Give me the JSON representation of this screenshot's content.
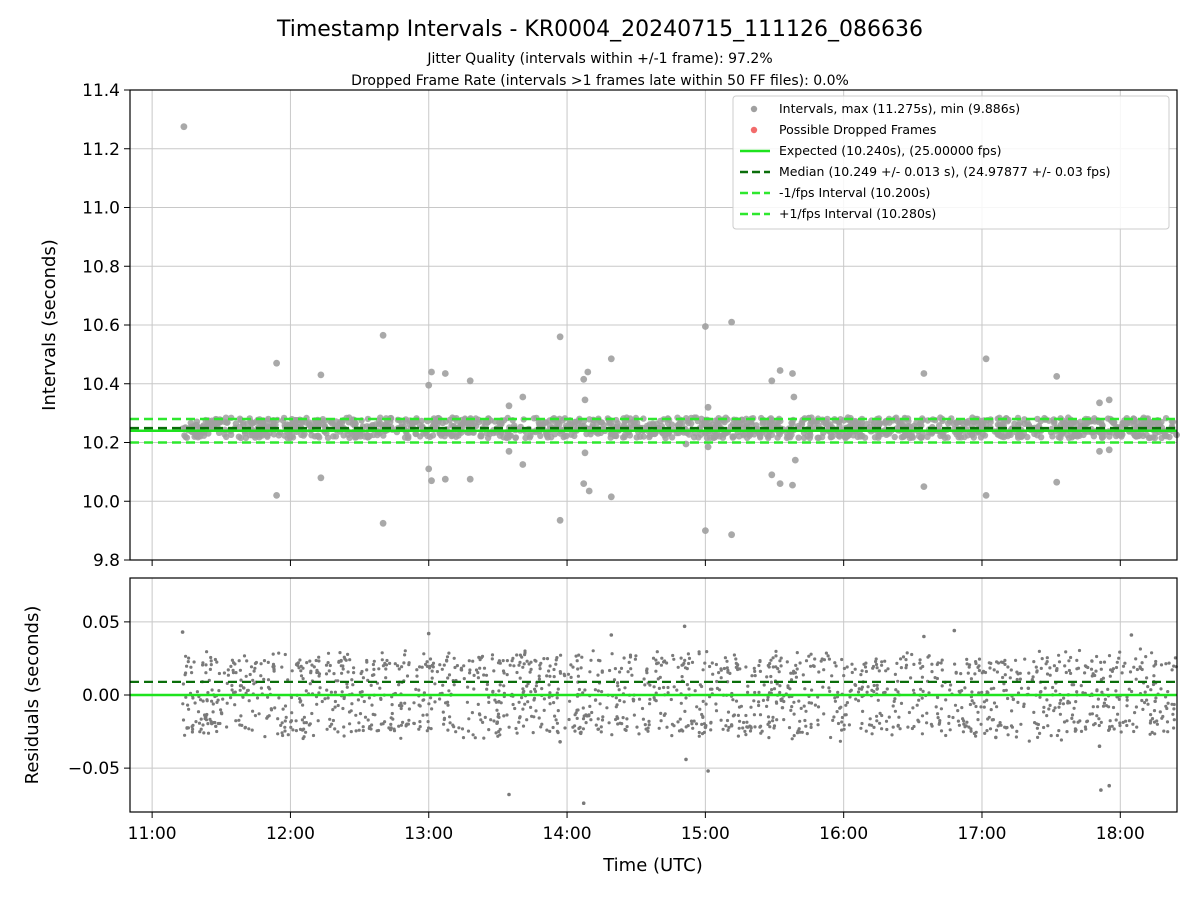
{
  "chart_data": {
    "title": "Timestamp Intervals - KR0004_20240715_111126_086636",
    "subtitle_lines": [
      "Jitter Quality (intervals within +/-1 frame): 97.2%",
      "Dropped Frame Rate (intervals >1 frames late within 50 FF files): 0.0%"
    ],
    "xlabel": "Time (UTC)",
    "x_ticks": [
      "11:00",
      "12:00",
      "13:00",
      "14:00",
      "15:00",
      "16:00",
      "17:00",
      "18:00"
    ],
    "x_range_hours": [
      10.84,
      18.41
    ],
    "data_start_hour": 11.22,
    "data_end_hour": 18.41,
    "colors": {
      "intervals": "#a0a0a0",
      "dropped": "#f26b6b",
      "expected": "#1ee31e",
      "median": "#0a6e0a",
      "fps_band": "#2ee82e",
      "residuals": "#7a7a7a",
      "grid": "#c8c8c8"
    },
    "panels": [
      {
        "type": "scatter",
        "ylabel": "Intervals (seconds)",
        "ylim": [
          9.8,
          11.4
        ],
        "y_ticks": [
          "9.8",
          "10.0",
          "10.2",
          "10.4",
          "10.6",
          "10.8",
          "11.0",
          "11.2",
          "11.4"
        ],
        "grid": true,
        "legend_position": "top-right",
        "legend": [
          {
            "label": "Intervals, max (11.275s), min (9.886s)",
            "marker": "dot",
            "color": "#a0a0a0"
          },
          {
            "label": "Possible Dropped Frames",
            "marker": "dot",
            "color": "#f26b6b"
          },
          {
            "label": "Expected (10.240s), (25.00000 fps)",
            "marker": "solid",
            "color": "#1ee31e"
          },
          {
            "label": "Median (10.249 +/- 0.013 s), (24.97877 +/- 0.03 fps)",
            "marker": "dashed",
            "color": "#0a6e0a"
          },
          {
            "label": "-1/fps Interval (10.200s)",
            "marker": "dashed",
            "color": "#2ee82e"
          },
          {
            "label": "+1/fps Interval (10.280s)",
            "marker": "dashed",
            "color": "#2ee82e"
          }
        ],
        "reference_lines": {
          "expected": 10.24,
          "median": 10.249,
          "minus_fps": 10.2,
          "plus_fps": 10.28
        },
        "dense_band": [
          10.215,
          10.285
        ],
        "outliers": [
          [
            11.23,
            11.275
          ],
          [
            11.9,
            10.47
          ],
          [
            11.9,
            10.02
          ],
          [
            12.22,
            10.43
          ],
          [
            12.22,
            10.08
          ],
          [
            12.67,
            10.565
          ],
          [
            12.67,
            9.925
          ],
          [
            13.0,
            10.395
          ],
          [
            13.02,
            10.44
          ],
          [
            13.0,
            10.11
          ],
          [
            13.02,
            10.07
          ],
          [
            13.12,
            10.435
          ],
          [
            13.12,
            10.075
          ],
          [
            13.3,
            10.41
          ],
          [
            13.3,
            10.075
          ],
          [
            13.58,
            10.325
          ],
          [
            13.58,
            10.17
          ],
          [
            13.68,
            10.355
          ],
          [
            13.68,
            10.125
          ],
          [
            13.95,
            10.56
          ],
          [
            13.95,
            9.935
          ],
          [
            14.12,
            10.415
          ],
          [
            14.13,
            10.345
          ],
          [
            14.15,
            10.44
          ],
          [
            14.13,
            10.165
          ],
          [
            14.12,
            10.06
          ],
          [
            14.16,
            10.035
          ],
          [
            14.32,
            10.485
          ],
          [
            14.32,
            10.015
          ],
          [
            14.86,
            10.195
          ],
          [
            15.0,
            10.595
          ],
          [
            15.0,
            9.9
          ],
          [
            15.02,
            10.32
          ],
          [
            15.02,
            10.185
          ],
          [
            15.19,
            10.61
          ],
          [
            15.19,
            9.886
          ],
          [
            15.48,
            10.41
          ],
          [
            15.48,
            10.09
          ],
          [
            15.54,
            10.445
          ],
          [
            15.54,
            10.06
          ],
          [
            15.63,
            10.435
          ],
          [
            15.64,
            10.355
          ],
          [
            15.65,
            10.14
          ],
          [
            15.63,
            10.055
          ],
          [
            16.58,
            10.435
          ],
          [
            16.58,
            10.05
          ],
          [
            17.03,
            10.485
          ],
          [
            17.03,
            10.02
          ],
          [
            17.54,
            10.425
          ],
          [
            17.54,
            10.065
          ],
          [
            17.85,
            10.335
          ],
          [
            17.85,
            10.17
          ],
          [
            17.92,
            10.345
          ],
          [
            17.92,
            10.175
          ]
        ]
      },
      {
        "type": "scatter",
        "ylabel": "Residuals (seconds)",
        "ylim": [
          -0.08,
          0.08
        ],
        "y_ticks": [
          "−0.05",
          "0.00",
          "0.05"
        ],
        "grid": true,
        "reference_lines": {
          "zero": 0.0,
          "median_offset": 0.009
        },
        "residual_levels": [
          -0.02,
          0.0,
          0.02
        ],
        "outliers": [
          [
            11.22,
            0.043
          ],
          [
            13.0,
            0.042
          ],
          [
            13.58,
            -0.068
          ],
          [
            13.95,
            -0.032
          ],
          [
            14.12,
            -0.074
          ],
          [
            14.32,
            0.041
          ],
          [
            14.85,
            0.047
          ],
          [
            14.86,
            -0.044
          ],
          [
            15.0,
            -0.022
          ],
          [
            15.02,
            -0.052
          ],
          [
            15.19,
            -0.021
          ],
          [
            16.58,
            0.04
          ],
          [
            16.8,
            0.044
          ],
          [
            17.1,
            -0.029
          ],
          [
            17.85,
            -0.035
          ],
          [
            17.86,
            -0.065
          ],
          [
            17.92,
            -0.062
          ],
          [
            18.08,
            0.041
          ]
        ]
      }
    ]
  }
}
